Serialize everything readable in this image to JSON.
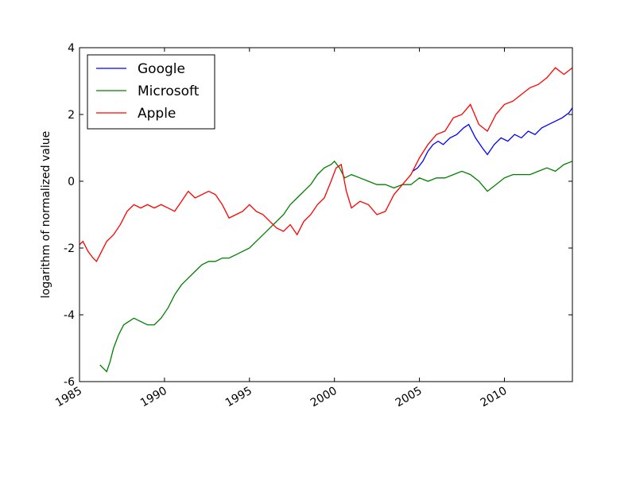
{
  "chart_data": {
    "type": "line",
    "title": "",
    "xlabel": "",
    "ylabel": "logarithm of normalized value",
    "xlim": [
      1985.0,
      2014.0
    ],
    "ylim": [
      -6,
      4
    ],
    "xticks": [
      1985,
      1990,
      1995,
      2000,
      2005,
      2010
    ],
    "xtick_labels": [
      "1985",
      "1990",
      "1995",
      "2000",
      "2005",
      "2010"
    ],
    "yticks": [
      -6,
      -4,
      -2,
      0,
      2,
      4
    ],
    "ytick_labels": [
      "-6",
      "-4",
      "-2",
      "0",
      "2",
      "4"
    ],
    "grid": false,
    "legend_position": "top-left",
    "series": [
      {
        "name": "Google",
        "color": "#0000ff",
        "x": [
          2004.6,
          2004.9,
          2005.2,
          2005.5,
          2005.8,
          2006.1,
          2006.4,
          2006.8,
          2007.2,
          2007.6,
          2007.9,
          2008.3,
          2008.7,
          2009.0,
          2009.4,
          2009.8,
          2010.2,
          2010.6,
          2011.0,
          2011.4,
          2011.8,
          2012.2,
          2012.6,
          2013.0,
          2013.4,
          2013.8,
          2014.0
        ],
        "y": [
          0.3,
          0.4,
          0.6,
          0.9,
          1.1,
          1.2,
          1.1,
          1.3,
          1.4,
          1.6,
          1.7,
          1.3,
          1.0,
          0.8,
          1.1,
          1.3,
          1.2,
          1.4,
          1.3,
          1.5,
          1.4,
          1.6,
          1.7,
          1.8,
          1.9,
          2.05,
          2.2
        ]
      },
      {
        "name": "Microsoft",
        "color": "#008000",
        "x": [
          1986.2,
          1986.4,
          1986.6,
          1986.8,
          1987.0,
          1987.3,
          1987.6,
          1987.9,
          1988.2,
          1988.6,
          1989.0,
          1989.4,
          1989.8,
          1990.2,
          1990.6,
          1991.0,
          1991.4,
          1991.8,
          1992.2,
          1992.6,
          1993.0,
          1993.4,
          1993.8,
          1994.2,
          1994.6,
          1995.0,
          1995.4,
          1995.8,
          1996.2,
          1996.6,
          1997.0,
          1997.4,
          1997.8,
          1998.2,
          1998.6,
          1999.0,
          1999.4,
          1999.8,
          2000.0,
          2000.3,
          2000.6,
          2001.0,
          2001.5,
          2002.0,
          2002.5,
          2003.0,
          2003.5,
          2004.0,
          2004.5,
          2005.0,
          2005.5,
          2006.0,
          2006.5,
          2007.0,
          2007.5,
          2008.0,
          2008.5,
          2009.0,
          2009.5,
          2010.0,
          2010.5,
          2011.0,
          2011.5,
          2012.0,
          2012.5,
          2013.0,
          2013.5,
          2014.0
        ],
        "y": [
          -5.5,
          -5.6,
          -5.7,
          -5.4,
          -5.0,
          -4.6,
          -4.3,
          -4.2,
          -4.1,
          -4.2,
          -4.3,
          -4.3,
          -4.1,
          -3.8,
          -3.4,
          -3.1,
          -2.9,
          -2.7,
          -2.5,
          -2.4,
          -2.4,
          -2.3,
          -2.3,
          -2.2,
          -2.1,
          -2.0,
          -1.8,
          -1.6,
          -1.4,
          -1.2,
          -1.0,
          -0.7,
          -0.5,
          -0.3,
          -0.1,
          0.2,
          0.4,
          0.5,
          0.6,
          0.4,
          0.1,
          0.2,
          0.1,
          0.0,
          -0.1,
          -0.1,
          -0.2,
          -0.1,
          -0.1,
          0.1,
          0.0,
          0.1,
          0.1,
          0.2,
          0.3,
          0.2,
          0.0,
          -0.3,
          -0.1,
          0.1,
          0.2,
          0.2,
          0.2,
          0.3,
          0.4,
          0.3,
          0.5,
          0.6
        ]
      },
      {
        "name": "Apple",
        "color": "#ff0000",
        "x": [
          1985.0,
          1985.2,
          1985.5,
          1985.8,
          1986.0,
          1986.3,
          1986.6,
          1987.0,
          1987.4,
          1987.8,
          1988.2,
          1988.6,
          1989.0,
          1989.4,
          1989.8,
          1990.2,
          1990.6,
          1991.0,
          1991.4,
          1991.8,
          1992.2,
          1992.6,
          1993.0,
          1993.4,
          1993.8,
          1994.2,
          1994.6,
          1995.0,
          1995.4,
          1995.8,
          1996.2,
          1996.6,
          1997.0,
          1997.4,
          1997.8,
          1998.2,
          1998.6,
          1999.0,
          1999.4,
          1999.8,
          2000.1,
          2000.4,
          2000.7,
          2001.0,
          2001.5,
          2002.0,
          2002.5,
          2003.0,
          2003.5,
          2004.0,
          2004.5,
          2005.0,
          2005.5,
          2006.0,
          2006.5,
          2007.0,
          2007.5,
          2008.0,
          2008.5,
          2009.0,
          2009.5,
          2010.0,
          2010.5,
          2011.0,
          2011.5,
          2012.0,
          2012.5,
          2013.0,
          2013.5,
          2014.0
        ],
        "y": [
          -1.9,
          -1.8,
          -2.1,
          -2.3,
          -2.4,
          -2.1,
          -1.8,
          -1.6,
          -1.3,
          -0.9,
          -0.7,
          -0.8,
          -0.7,
          -0.8,
          -0.7,
          -0.8,
          -0.9,
          -0.6,
          -0.3,
          -0.5,
          -0.4,
          -0.3,
          -0.4,
          -0.7,
          -1.1,
          -1.0,
          -0.9,
          -0.7,
          -0.9,
          -1.0,
          -1.2,
          -1.4,
          -1.5,
          -1.3,
          -1.6,
          -1.2,
          -1.0,
          -0.7,
          -0.5,
          0.0,
          0.4,
          0.5,
          -0.3,
          -0.8,
          -0.6,
          -0.7,
          -1.0,
          -0.9,
          -0.4,
          -0.1,
          0.2,
          0.7,
          1.1,
          1.4,
          1.5,
          1.9,
          2.0,
          2.3,
          1.7,
          1.5,
          2.0,
          2.3,
          2.4,
          2.6,
          2.8,
          2.9,
          3.1,
          3.4,
          3.2,
          3.4
        ]
      }
    ]
  }
}
